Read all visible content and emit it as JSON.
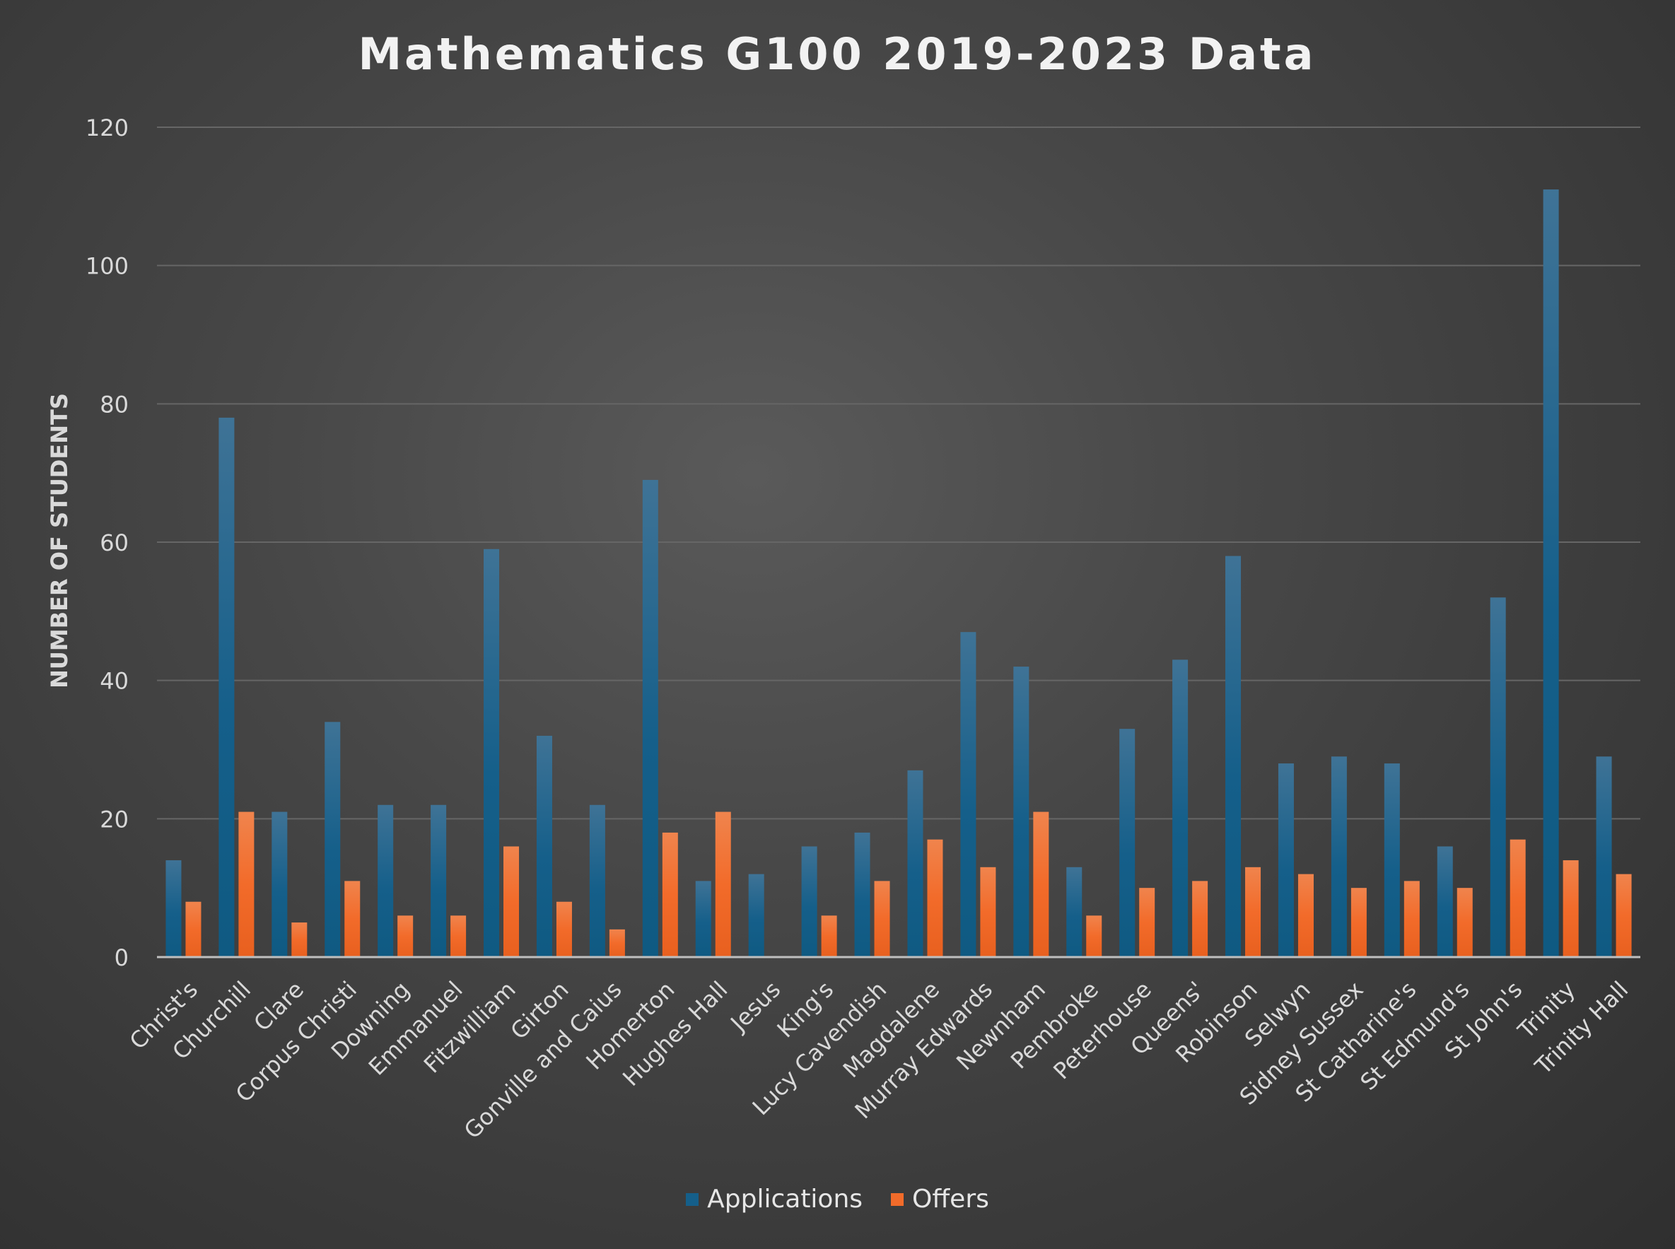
{
  "chart_data": {
    "type": "bar",
    "title": "Mathematics G100 2019-2023 Data",
    "xlabel": "",
    "ylabel": "NUMBER OF STUDENTS",
    "ylim": [
      0,
      120
    ],
    "yticks": [
      0,
      20,
      40,
      60,
      80,
      100,
      120
    ],
    "grid": true,
    "legend_position": "bottom",
    "categories": [
      "Christ's",
      "Churchill",
      "Clare",
      "Corpus Christi",
      "Downing",
      "Emmanuel",
      "Fitzwilliam",
      "Girton",
      "Gonville and Caius",
      "Homerton",
      "Hughes Hall",
      "Jesus",
      "King's",
      "Lucy Cavendish",
      "Magdalene",
      "Murray Edwards",
      "Newnham",
      "Pembroke",
      "Peterhouse",
      "Queens'",
      "Robinson",
      "Selwyn",
      "Sidney Sussex",
      "St Catharine's",
      "St Edmund's",
      "St John's",
      "Trinity",
      "Trinity Hall"
    ],
    "series": [
      {
        "name": "Applications",
        "color": "#1f5f86",
        "values": [
          14,
          78,
          21,
          34,
          22,
          22,
          59,
          32,
          22,
          69,
          11,
          12,
          16,
          18,
          27,
          47,
          42,
          13,
          33,
          43,
          58,
          28,
          29,
          28,
          16,
          52,
          111,
          29
        ]
      },
      {
        "name": "Offers",
        "color": "#ee6a2c",
        "values": [
          8,
          21,
          5,
          11,
          6,
          6,
          16,
          8,
          4,
          18,
          21,
          0,
          6,
          11,
          17,
          13,
          21,
          6,
          10,
          11,
          13,
          12,
          10,
          11,
          10,
          17,
          14,
          12
        ]
      }
    ]
  }
}
